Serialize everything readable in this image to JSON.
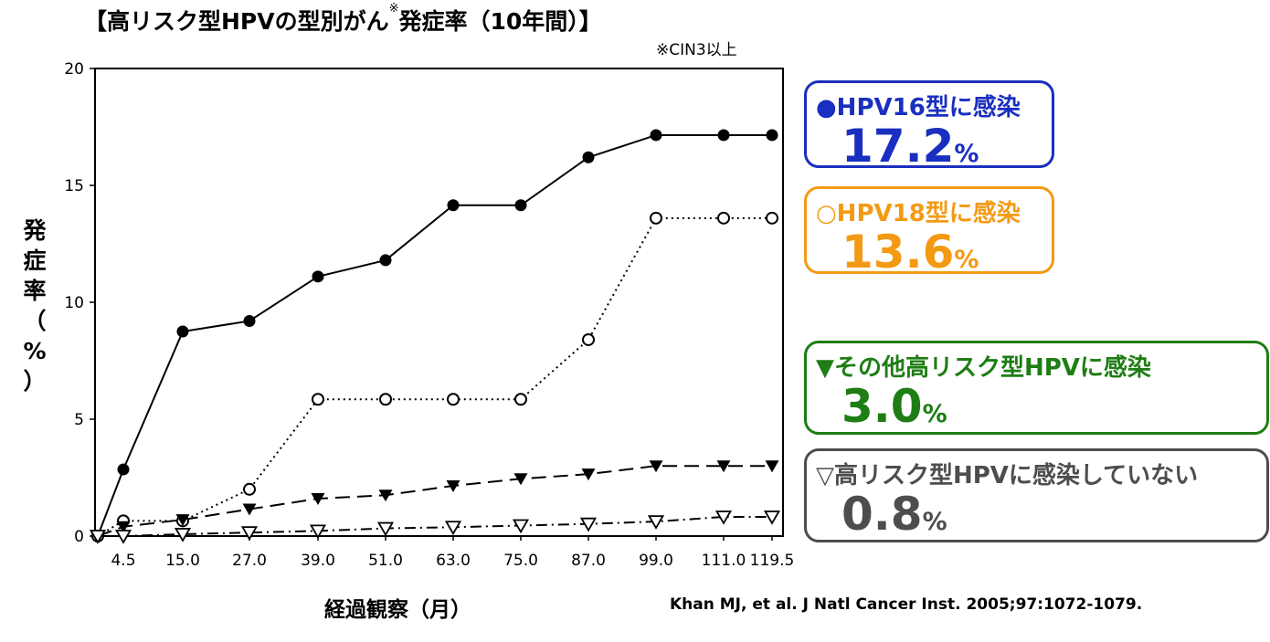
{
  "title_main": "【高リスク型HPVの型別がん",
  "title_mark": "※",
  "title_rest": "発症率（10年間）】",
  "note": "※CIN3以上",
  "ylabel_chars": [
    "発",
    "症",
    "率",
    "（",
    "%",
    "）"
  ],
  "xlabel": "経過観察（月）",
  "source": "Khan MJ, et al. J Natl Cancer Inst. 2005;97:1072-1079.",
  "boxes": [
    {
      "label": "●HPV16型に感染",
      "value": "17.2",
      "unit": "%",
      "color": "#1a2fbf"
    },
    {
      "label": "○HPV18型に感染",
      "value": "13.6",
      "unit": "%",
      "color": "#f39a14"
    },
    {
      "label": "▼その他高リスク型HPVに感染",
      "value": "3.0",
      "unit": "%",
      "color": "#1e7d14"
    },
    {
      "label": "▽高リスク型HPVに感染していない",
      "value": "0.8",
      "unit": "%",
      "color": "#4d4d4d"
    }
  ],
  "chart_data": {
    "type": "line",
    "categories": [
      "0",
      "4.5",
      "15.0",
      "27.0",
      "39.0",
      "51.0",
      "63.0",
      "75.0",
      "87.0",
      "99.0",
      "111.0",
      "119.5"
    ],
    "xtick_labels": [
      "4.5",
      "15.0",
      "27.0",
      "39.0",
      "51.0",
      "63.0",
      "75.0",
      "87.0",
      "99.0",
      "111.0",
      "119.5"
    ],
    "yticks": [
      0,
      5,
      10,
      15,
      20
    ],
    "ylim": [
      0,
      20
    ],
    "xlabel": "経過観察（月）",
    "ylabel": "発症率（%）",
    "series": [
      {
        "name": "HPV16型に感染",
        "marker": "filled-circle",
        "dash": "solid",
        "values": [
          0,
          2.85,
          8.75,
          9.2,
          11.1,
          11.8,
          14.15,
          14.15,
          16.2,
          17.15,
          17.15,
          17.15
        ]
      },
      {
        "name": "HPV18型に感染",
        "marker": "open-circle",
        "dash": "dotted",
        "values": [
          0,
          0.65,
          0.65,
          2.0,
          5.85,
          5.85,
          5.85,
          5.85,
          8.4,
          13.6,
          13.6,
          13.6
        ]
      },
      {
        "name": "その他高リスク型HPVに感染",
        "marker": "filled-triangle-down",
        "dash": "dashed",
        "values": [
          0,
          0.4,
          0.7,
          1.15,
          1.6,
          1.75,
          2.15,
          2.45,
          2.65,
          3.0,
          3.0,
          3.0
        ]
      },
      {
        "name": "高リスク型HPVに感染していない",
        "marker": "open-triangle-down",
        "dash": "dashdot",
        "values": [
          0,
          0.0,
          0.08,
          0.15,
          0.22,
          0.33,
          0.38,
          0.45,
          0.52,
          0.62,
          0.82,
          0.82
        ]
      }
    ]
  }
}
